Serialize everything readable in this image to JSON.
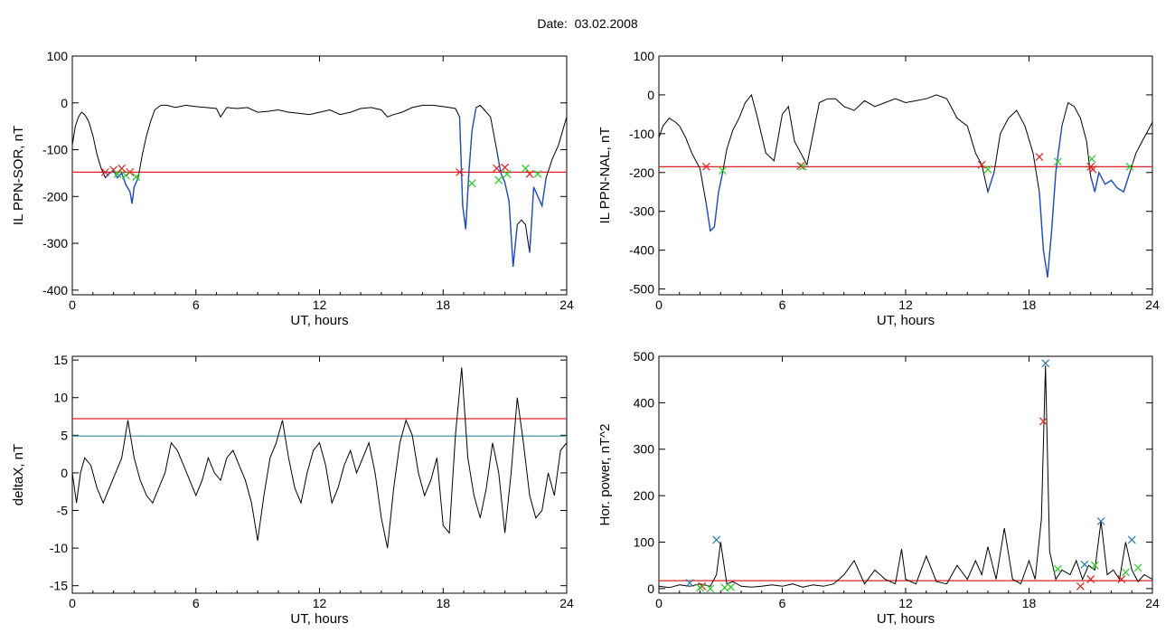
{
  "page": {
    "title": "Date:  03.02.2008"
  },
  "colors": {
    "trace": "#000000",
    "highlight": "#1f4fbf",
    "red": "#e02020",
    "cyan": "#2a8fb0",
    "green": "#22cc22",
    "blue_marker": "#1f77b4"
  },
  "chart_data": [
    {
      "type": "line",
      "xlabel": "UT, hours",
      "ylabel": "IL PPN-SOR, nT",
      "xlim": [
        0,
        24
      ],
      "ylim": [
        -410,
        100
      ],
      "xticks": [
        0,
        6,
        12,
        18,
        24
      ],
      "yticks": [
        100,
        0,
        -100,
        -200,
        -300,
        -400
      ],
      "threshold_lines": [
        {
          "y": -148,
          "color": "red"
        }
      ],
      "highlight_intervals": [
        [
          1.6,
          3.2
        ],
        [
          18.8,
          19.6
        ],
        [
          20.6,
          21.7
        ],
        [
          22.2,
          23.0
        ]
      ],
      "series": [
        {
          "x": [
            0,
            0.15,
            0.3,
            0.45,
            0.6,
            0.8,
            1.0,
            1.2,
            1.4,
            1.6,
            1.8,
            2.0,
            2.2,
            2.4,
            2.6,
            2.8,
            2.9,
            3.0,
            3.2,
            3.4,
            3.6,
            3.8,
            4.0,
            4.3,
            4.6,
            5.0,
            5.5,
            6.0,
            6.5,
            7.0,
            7.2,
            7.5,
            8.0,
            8.5,
            9.0,
            9.5,
            10.0,
            10.5,
            11.0,
            11.5,
            12.0,
            12.5,
            13.0,
            13.5,
            14.0,
            14.5,
            15.0,
            15.3,
            15.6,
            16.0,
            16.5,
            17.0,
            17.5,
            18.0,
            18.3,
            18.6,
            18.8,
            18.95,
            19.1,
            19.25,
            19.4,
            19.6,
            19.8,
            20.0,
            20.3,
            20.6,
            20.8,
            21.0,
            21.2,
            21.4,
            21.6,
            21.8,
            22.0,
            22.2,
            22.4,
            22.6,
            22.8,
            23.0,
            23.3,
            23.6,
            23.8,
            24.0
          ],
          "y": [
            -90,
            -50,
            -30,
            -20,
            -25,
            -40,
            -70,
            -110,
            -140,
            -160,
            -150,
            -145,
            -160,
            -150,
            -175,
            -190,
            -215,
            -180,
            -160,
            -110,
            -70,
            -40,
            -15,
            -5,
            -5,
            -10,
            -5,
            -8,
            -10,
            -12,
            -30,
            -10,
            -12,
            -10,
            -20,
            -18,
            -15,
            -20,
            -22,
            -25,
            -20,
            -15,
            -25,
            -20,
            -12,
            -10,
            -15,
            -30,
            -25,
            -20,
            -10,
            -5,
            -5,
            -8,
            -10,
            -12,
            -30,
            -220,
            -270,
            -150,
            -60,
            -10,
            -5,
            -15,
            -30,
            -100,
            -150,
            -170,
            -210,
            -350,
            -260,
            -250,
            -260,
            -320,
            -180,
            -200,
            -220,
            -160,
            -120,
            -90,
            -60,
            -30
          ]
        }
      ],
      "markers": [
        {
          "x": 1.6,
          "y": -148,
          "color": "red"
        },
        {
          "x": 2.0,
          "y": -143,
          "color": "red"
        },
        {
          "x": 2.4,
          "y": -140,
          "color": "red"
        },
        {
          "x": 2.8,
          "y": -148,
          "color": "red"
        },
        {
          "x": 2.2,
          "y": -152,
          "color": "green"
        },
        {
          "x": 2.6,
          "y": -155,
          "color": "green"
        },
        {
          "x": 3.1,
          "y": -158,
          "color": "green"
        },
        {
          "x": 18.8,
          "y": -148,
          "color": "red"
        },
        {
          "x": 19.4,
          "y": -172,
          "color": "green"
        },
        {
          "x": 20.6,
          "y": -140,
          "color": "red"
        },
        {
          "x": 21.0,
          "y": -138,
          "color": "red"
        },
        {
          "x": 20.7,
          "y": -165,
          "color": "green"
        },
        {
          "x": 21.1,
          "y": -152,
          "color": "green"
        },
        {
          "x": 22.2,
          "y": -152,
          "color": "red"
        },
        {
          "x": 22.0,
          "y": -140,
          "color": "green"
        },
        {
          "x": 22.6,
          "y": -152,
          "color": "green"
        }
      ]
    },
    {
      "type": "line",
      "xlabel": "UT, hours",
      "ylabel": "IL PPN-NAL, nT",
      "xlim": [
        0,
        24
      ],
      "ylim": [
        -515,
        100
      ],
      "xticks": [
        0,
        6,
        12,
        18,
        24
      ],
      "yticks": [
        100,
        0,
        -100,
        -200,
        -300,
        -400,
        -500
      ],
      "threshold_lines": [
        {
          "y": -185,
          "color": "red"
        }
      ],
      "highlight_intervals": [
        [
          2.3,
          3.2
        ],
        [
          15.9,
          16.3
        ],
        [
          18.5,
          19.6
        ],
        [
          21.0,
          23.0
        ]
      ],
      "series": [
        {
          "x": [
            0,
            0.2,
            0.5,
            0.8,
            1.0,
            1.3,
            1.6,
            2.0,
            2.3,
            2.5,
            2.7,
            2.9,
            3.1,
            3.3,
            3.6,
            3.9,
            4.2,
            4.5,
            4.8,
            5.2,
            5.6,
            6.0,
            6.3,
            6.6,
            6.9,
            7.2,
            7.5,
            7.8,
            8.2,
            8.6,
            9.0,
            9.5,
            10.0,
            10.5,
            11.0,
            11.5,
            12.0,
            12.5,
            13.0,
            13.5,
            14.0,
            14.5,
            15.0,
            15.4,
            15.7,
            16.0,
            16.3,
            16.6,
            17.0,
            17.4,
            17.8,
            18.2,
            18.5,
            18.7,
            18.9,
            19.1,
            19.3,
            19.6,
            19.9,
            20.2,
            20.5,
            20.8,
            21.0,
            21.2,
            21.4,
            21.7,
            22.0,
            22.3,
            22.6,
            22.9,
            23.2,
            23.5,
            23.8,
            24.0
          ],
          "y": [
            -110,
            -80,
            -60,
            -70,
            -80,
            -110,
            -150,
            -190,
            -280,
            -350,
            -340,
            -250,
            -200,
            -140,
            -90,
            -60,
            -20,
            0,
            -60,
            -150,
            -170,
            -50,
            -30,
            -120,
            -150,
            -180,
            -100,
            -20,
            -10,
            -10,
            -30,
            -40,
            -15,
            -30,
            -20,
            -10,
            -20,
            -15,
            -10,
            0,
            -10,
            -60,
            -80,
            -150,
            -180,
            -250,
            -200,
            -100,
            -60,
            -40,
            -80,
            -150,
            -250,
            -400,
            -470,
            -350,
            -200,
            -80,
            -20,
            -30,
            -60,
            -120,
            -210,
            -250,
            -200,
            -230,
            -220,
            -240,
            -250,
            -200,
            -150,
            -120,
            -90,
            -70
          ]
        }
      ],
      "markers": [
        {
          "x": 2.3,
          "y": -185,
          "color": "red"
        },
        {
          "x": 3.1,
          "y": -195,
          "color": "green"
        },
        {
          "x": 6.9,
          "y": -183,
          "color": "red"
        },
        {
          "x": 7.0,
          "y": -185,
          "color": "green"
        },
        {
          "x": 15.7,
          "y": -180,
          "color": "red"
        },
        {
          "x": 16.0,
          "y": -192,
          "color": "green"
        },
        {
          "x": 18.5,
          "y": -160,
          "color": "red"
        },
        {
          "x": 19.4,
          "y": -172,
          "color": "green"
        },
        {
          "x": 21.0,
          "y": -185,
          "color": "red"
        },
        {
          "x": 21.1,
          "y": -192,
          "color": "red"
        },
        {
          "x": 21.05,
          "y": -165,
          "color": "green"
        },
        {
          "x": 22.9,
          "y": -185,
          "color": "green"
        }
      ]
    },
    {
      "type": "line",
      "xlabel": "UT, hours",
      "ylabel": "deltaX, nT",
      "xlim": [
        0,
        24
      ],
      "ylim": [
        -16,
        15.5
      ],
      "xticks": [
        0,
        6,
        12,
        18,
        24
      ],
      "yticks": [
        15,
        10,
        5,
        0,
        -5,
        -10,
        -15
      ],
      "threshold_lines": [
        {
          "y": 7.2,
          "color": "red"
        },
        {
          "y": 4.9,
          "color": "cyan"
        }
      ],
      "series": [
        {
          "x": [
            0,
            0.2,
            0.4,
            0.6,
            0.9,
            1.2,
            1.5,
            1.8,
            2.1,
            2.4,
            2.7,
            3.0,
            3.3,
            3.6,
            3.9,
            4.2,
            4.5,
            4.8,
            5.1,
            5.4,
            5.7,
            6.0,
            6.3,
            6.6,
            6.9,
            7.2,
            7.5,
            7.8,
            8.1,
            8.4,
            8.7,
            9.0,
            9.3,
            9.6,
            9.9,
            10.2,
            10.5,
            10.8,
            11.1,
            11.4,
            11.7,
            12.0,
            12.3,
            12.6,
            12.9,
            13.2,
            13.5,
            13.8,
            14.1,
            14.4,
            14.7,
            15.0,
            15.3,
            15.6,
            15.9,
            16.2,
            16.5,
            16.8,
            17.1,
            17.4,
            17.7,
            18.0,
            18.3,
            18.6,
            18.9,
            19.2,
            19.5,
            19.8,
            20.1,
            20.4,
            20.7,
            21.0,
            21.3,
            21.6,
            21.9,
            22.2,
            22.5,
            22.8,
            23.1,
            23.4,
            23.7,
            24.0
          ],
          "y": [
            0,
            -4,
            0,
            2,
            1,
            -2,
            -4,
            -2,
            0,
            2,
            7,
            2,
            -1,
            -3,
            -4,
            -2,
            0,
            4,
            3,
            1,
            -1,
            -3,
            -1,
            2,
            0,
            -1,
            2,
            3,
            1,
            -1,
            -4,
            -9,
            -3,
            2,
            4,
            7,
            2,
            -2,
            -4,
            0,
            3,
            4,
            1,
            -4,
            -2,
            1,
            3,
            0,
            2,
            4,
            0,
            -6,
            -10,
            -2,
            4,
            7,
            5,
            0,
            -3,
            -1,
            2,
            -7,
            -8,
            5,
            14,
            2,
            -3,
            -6,
            -2,
            4,
            0,
            -8,
            0,
            10,
            4,
            -3,
            -6,
            -5,
            0,
            -3,
            3,
            4
          ]
        }
      ]
    },
    {
      "type": "line",
      "xlabel": "UT, hours",
      "ylabel": "Hor. power, nT^2",
      "xlim": [
        0,
        24
      ],
      "ylim": [
        -10,
        500
      ],
      "xticks": [
        0,
        6,
        12,
        18,
        24
      ],
      "yticks": [
        500,
        400,
        300,
        200,
        100,
        0
      ],
      "threshold_lines": [
        {
          "y": 17,
          "color": "red"
        }
      ],
      "series": [
        {
          "x": [
            0,
            0.5,
            1.0,
            1.5,
            2.0,
            2.5,
            2.8,
            3.0,
            3.3,
            3.6,
            4.0,
            4.5,
            5.0,
            5.5,
            6.0,
            6.5,
            7.0,
            7.5,
            8.0,
            8.5,
            9.0,
            9.5,
            10.0,
            10.5,
            11.0,
            11.5,
            11.8,
            12.0,
            12.5,
            13.0,
            13.5,
            14.0,
            14.5,
            15.0,
            15.4,
            15.7,
            16.0,
            16.4,
            16.8,
            17.2,
            17.6,
            18.0,
            18.3,
            18.6,
            18.8,
            19.0,
            19.3,
            19.6,
            20.0,
            20.3,
            20.6,
            20.9,
            21.2,
            21.5,
            21.8,
            22.1,
            22.4,
            22.7,
            23.0,
            23.3,
            23.6,
            24.0
          ],
          "y": [
            5,
            2,
            8,
            5,
            10,
            5,
            30,
            100,
            10,
            15,
            5,
            3,
            5,
            8,
            5,
            10,
            3,
            8,
            5,
            10,
            30,
            60,
            10,
            40,
            20,
            10,
            85,
            20,
            10,
            70,
            15,
            10,
            50,
            20,
            60,
            30,
            90,
            20,
            130,
            20,
            10,
            60,
            20,
            150,
            480,
            80,
            20,
            40,
            30,
            60,
            20,
            50,
            40,
            145,
            30,
            40,
            20,
            100,
            40,
            15,
            30,
            20
          ]
        }
      ],
      "markers": [
        {
          "x": 1.5,
          "y": 12,
          "color": "blue"
        },
        {
          "x": 2.1,
          "y": 5,
          "color": "red"
        },
        {
          "x": 2.0,
          "y": 2,
          "color": "green"
        },
        {
          "x": 2.5,
          "y": 0,
          "color": "green"
        },
        {
          "x": 2.8,
          "y": 105,
          "color": "blue"
        },
        {
          "x": 3.2,
          "y": 2,
          "color": "green"
        },
        {
          "x": 3.5,
          "y": 3,
          "color": "green"
        },
        {
          "x": 18.7,
          "y": 360,
          "color": "red"
        },
        {
          "x": 18.8,
          "y": 485,
          "color": "blue"
        },
        {
          "x": 19.4,
          "y": 42,
          "color": "green"
        },
        {
          "x": 20.5,
          "y": 5,
          "color": "red"
        },
        {
          "x": 20.7,
          "y": 52,
          "color": "blue"
        },
        {
          "x": 21.0,
          "y": 20,
          "color": "red"
        },
        {
          "x": 21.2,
          "y": 50,
          "color": "green"
        },
        {
          "x": 21.5,
          "y": 145,
          "color": "blue"
        },
        {
          "x": 22.5,
          "y": 20,
          "color": "red"
        },
        {
          "x": 22.7,
          "y": 35,
          "color": "green"
        },
        {
          "x": 23.0,
          "y": 105,
          "color": "blue"
        },
        {
          "x": 23.3,
          "y": 45,
          "color": "green"
        }
      ]
    }
  ]
}
